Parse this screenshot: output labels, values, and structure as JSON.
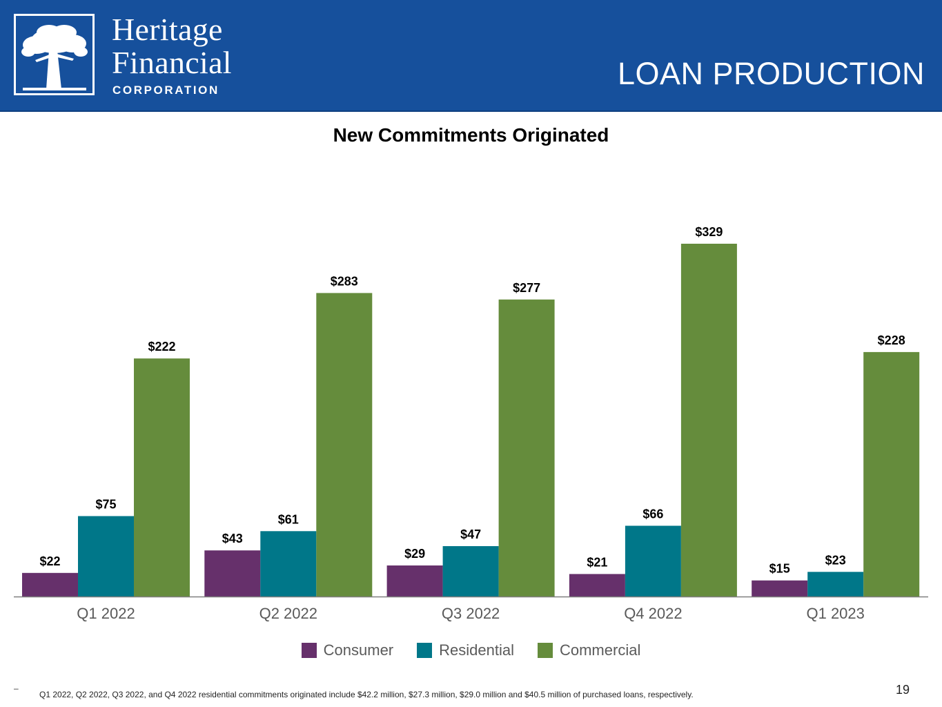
{
  "brand": {
    "line1": "Heritage",
    "line2": "Financial",
    "line3": "CORPORATION",
    "logo_icon": "oak-tree-icon"
  },
  "slide_title": "LOAN PRODUCTION",
  "chart_data": {
    "type": "bar",
    "title": "New Commitments Originated",
    "xlabel": "",
    "ylabel": "",
    "categories": [
      "Q1 2022",
      "Q2 2022",
      "Q3 2022",
      "Q4 2022",
      "Q1 2023"
    ],
    "series": [
      {
        "name": "Consumer",
        "color": "#66306b",
        "values": [
          22,
          43,
          29,
          21,
          15
        ],
        "labels": [
          "$22",
          "$43",
          "$29",
          "$21",
          "$15"
        ]
      },
      {
        "name": "Residential",
        "color": "#007789",
        "values": [
          75,
          61,
          47,
          66,
          23
        ],
        "labels": [
          "$75",
          "$61",
          "$47",
          "$66",
          "$23"
        ]
      },
      {
        "name": "Commercial",
        "color": "#658c3c",
        "values": [
          222,
          283,
          277,
          329,
          228
        ],
        "labels": [
          "$222",
          "$283",
          "$277",
          "$329",
          "$228"
        ]
      }
    ],
    "ylim": [
      0,
      329
    ],
    "grid": false,
    "legend_position": "bottom"
  },
  "footnote_mark": "–",
  "footnote": "Q1 2022, Q2 2022, Q3 2022, and Q4 2022  residential commitments originated include $42.2 million, $27.3 million, $29.0 million and $40.5 million of purchased loans, respectively.",
  "page_number": "19",
  "colors": {
    "header_bg": "#16509c",
    "axis": "#7f7f7f",
    "category_label": "#595959"
  }
}
